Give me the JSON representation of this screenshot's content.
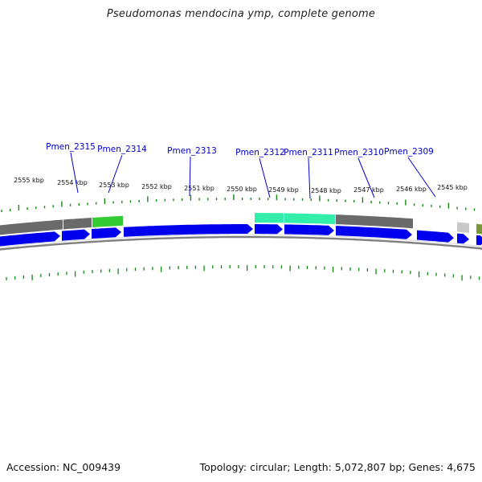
{
  "title": "Pseudomonas mendocina ymp, complete genome",
  "footer": {
    "accession": "Accession: NC_009439",
    "summary": "Topology: circular; Length: 5,072,807 bp; Genes: 4,675"
  },
  "colors": {
    "cds_blue": "#0000ee",
    "cog_gray": "#6a6a6a",
    "cog_green": "#33cc33",
    "cog_cyan": "#33eeaa",
    "cog_lightgray": "#c8c8c8",
    "cog_olive": "#779933",
    "backbone": "#808080",
    "tick_green": "#118811",
    "label_blue": "#0000cc"
  },
  "kbp_ticks": [
    "2555 kbp",
    "2554 kbp",
    "2553 kbp",
    "2552 kbp",
    "2551 kbp",
    "2550 kbp",
    "2549 kbp",
    "2548 kbp",
    "2547 kbp",
    "2546 kbp",
    "2545 kbp"
  ],
  "gene_labels": [
    "Pmen_2315",
    "Pmen_2314",
    "Pmen_2313",
    "Pmen_2312",
    "Pmen_2311",
    "Pmen_2310",
    "Pmen_2309"
  ]
}
